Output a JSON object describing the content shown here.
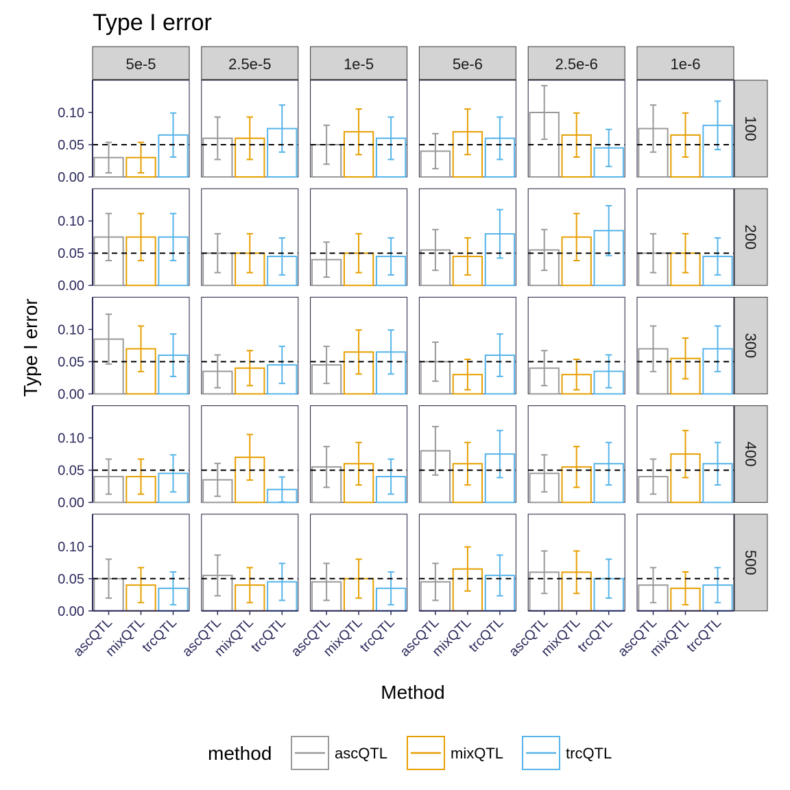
{
  "chart_data": {
    "type": "bar",
    "title": "Type I error",
    "xlabel": "Method",
    "ylabel": "Type I error",
    "ylim": [
      0,
      0.15
    ],
    "yticks": [
      "0.00",
      "0.05",
      "0.10"
    ],
    "reference_line": 0.05,
    "methods": [
      "ascQTL",
      "mixQTL",
      "trcQTL"
    ],
    "method_colors": {
      "ascQTL": "#999999",
      "mixQTL": "#E69F00",
      "trcQTL": "#56B4E9"
    },
    "col_facets": [
      "5e-5",
      "2.5e-5",
      "1e-5",
      "5e-6",
      "2.5e-6",
      "1e-6"
    ],
    "row_facets": [
      "100",
      "200",
      "300",
      "400",
      "500"
    ],
    "legend": {
      "title": "method",
      "position": "bottom",
      "items": [
        "ascQTL",
        "mixQTL",
        "trcQTL"
      ]
    },
    "values": [
      [
        [
          0.03,
          0.03,
          0.065
        ],
        [
          0.06,
          0.06,
          0.075
        ],
        [
          0.05,
          0.07,
          0.06
        ],
        [
          0.04,
          0.07,
          0.06
        ],
        [
          0.1,
          0.065,
          0.045
        ],
        [
          0.075,
          0.065,
          0.08
        ]
      ],
      [
        [
          0.075,
          0.075,
          0.075
        ],
        [
          0.05,
          0.05,
          0.045
        ],
        [
          0.04,
          0.05,
          0.045
        ],
        [
          0.055,
          0.045,
          0.08
        ],
        [
          0.055,
          0.075,
          0.085
        ],
        [
          0.05,
          0.05,
          0.045
        ]
      ],
      [
        [
          0.085,
          0.07,
          0.06
        ],
        [
          0.035,
          0.04,
          0.045
        ],
        [
          0.045,
          0.065,
          0.065
        ],
        [
          0.05,
          0.03,
          0.06
        ],
        [
          0.04,
          0.03,
          0.035
        ],
        [
          0.07,
          0.055,
          0.07
        ]
      ],
      [
        [
          0.04,
          0.04,
          0.045
        ],
        [
          0.035,
          0.07,
          0.02
        ],
        [
          0.055,
          0.06,
          0.04
        ],
        [
          0.08,
          0.06,
          0.075
        ],
        [
          0.045,
          0.055,
          0.06
        ],
        [
          0.04,
          0.075,
          0.06
        ]
      ],
      [
        [
          0.05,
          0.04,
          0.035
        ],
        [
          0.055,
          0.04,
          0.045
        ],
        [
          0.045,
          0.05,
          0.035
        ],
        [
          0.045,
          0.065,
          0.055
        ],
        [
          0.06,
          0.06,
          0.05
        ],
        [
          0.04,
          0.035,
          0.04
        ]
      ]
    ]
  }
}
